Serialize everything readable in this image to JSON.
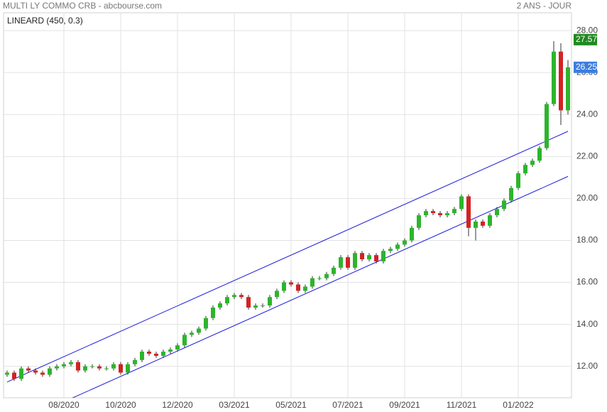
{
  "chart_data": {
    "type": "candlestick",
    "title": "MULTI LY COMMO CRB - abcbourse.com",
    "period": "2 ANS - JOUR",
    "indicator": "LINEARD (450, 0.3)",
    "open": [
      11.6,
      11.7,
      11.4,
      11.9,
      11.8,
      11.7,
      11.6,
      11.9,
      12.0,
      12.1,
      12.2,
      11.8,
      12.0,
      12.0,
      11.9,
      11.9,
      12.1,
      11.7,
      12.1,
      12.3,
      12.7,
      12.6,
      12.5,
      12.7,
      12.8,
      13.0,
      13.5,
      13.6,
      13.8,
      14.3,
      14.8,
      15.0,
      15.3,
      15.4,
      15.3,
      14.8,
      14.9,
      14.9,
      15.3,
      15.6,
      16.0,
      15.9,
      15.6,
      15.8,
      16.2,
      16.2,
      16.4,
      16.7,
      17.2,
      16.7,
      17.4,
      17.1,
      17.3,
      17.0,
      17.5,
      17.6,
      17.8,
      18.0,
      18.6,
      19.2,
      19.4,
      19.3,
      19.2,
      19.3,
      19.5,
      20.1,
      18.6,
      18.9,
      18.7,
      19.2,
      19.5,
      19.9,
      20.5,
      21.2,
      21.6,
      21.8,
      22.4,
      24.5,
      27.0,
      24.2
    ],
    "high": [
      11.8,
      11.8,
      12.0,
      12.0,
      11.9,
      11.8,
      12.0,
      12.1,
      12.2,
      12.3,
      12.3,
      12.1,
      12.1,
      12.1,
      12.0,
      12.2,
      12.2,
      12.2,
      12.4,
      12.8,
      12.8,
      12.7,
      12.8,
      12.9,
      13.1,
      13.6,
      13.7,
      13.9,
      14.4,
      14.9,
      15.1,
      15.4,
      15.5,
      15.5,
      15.4,
      15.0,
      15.0,
      15.4,
      15.7,
      16.1,
      16.1,
      16.0,
      15.9,
      16.3,
      16.3,
      16.5,
      16.8,
      17.3,
      17.3,
      17.5,
      17.5,
      17.4,
      17.4,
      17.6,
      17.7,
      17.9,
      18.1,
      18.7,
      19.3,
      19.5,
      19.5,
      19.4,
      19.4,
      19.6,
      20.2,
      20.2,
      19.0,
      19.0,
      19.3,
      19.6,
      20.0,
      20.6,
      21.3,
      21.7,
      21.9,
      22.5,
      24.6,
      27.5,
      27.4,
      26.6
    ],
    "low": [
      11.5,
      11.3,
      11.3,
      11.7,
      11.6,
      11.5,
      11.5,
      11.8,
      11.9,
      12.0,
      11.7,
      11.7,
      11.9,
      11.8,
      11.8,
      11.8,
      11.6,
      11.6,
      12.0,
      12.2,
      12.5,
      12.4,
      12.4,
      12.6,
      12.7,
      12.9,
      13.4,
      13.5,
      13.7,
      14.2,
      14.7,
      14.9,
      15.2,
      15.2,
      14.7,
      14.7,
      14.8,
      14.8,
      15.2,
      15.5,
      15.8,
      15.5,
      15.5,
      15.7,
      16.1,
      16.1,
      16.3,
      16.6,
      16.6,
      16.6,
      17.0,
      17.0,
      16.9,
      16.9,
      17.4,
      17.5,
      17.7,
      17.9,
      18.5,
      19.1,
      19.2,
      19.1,
      19.1,
      19.2,
      19.4,
      18.2,
      18.0,
      18.6,
      18.6,
      19.1,
      19.4,
      19.8,
      20.4,
      21.1,
      21.5,
      21.7,
      22.3,
      24.4,
      23.5,
      24.0
    ],
    "close": [
      11.7,
      11.4,
      11.9,
      11.8,
      11.7,
      11.6,
      11.9,
      12.0,
      12.1,
      12.2,
      11.8,
      12.0,
      12.0,
      11.9,
      11.9,
      12.1,
      11.7,
      12.1,
      12.3,
      12.7,
      12.6,
      12.5,
      12.7,
      12.8,
      13.0,
      13.5,
      13.6,
      13.8,
      14.3,
      14.8,
      15.0,
      15.3,
      15.4,
      15.3,
      14.8,
      14.9,
      14.9,
      15.3,
      15.6,
      16.0,
      15.9,
      15.6,
      15.8,
      16.2,
      16.2,
      16.4,
      16.7,
      17.2,
      16.7,
      17.4,
      17.1,
      17.3,
      17.0,
      17.5,
      17.6,
      17.8,
      18.0,
      18.6,
      19.2,
      19.4,
      19.3,
      19.2,
      19.3,
      19.5,
      20.1,
      18.6,
      18.9,
      18.7,
      19.2,
      19.5,
      19.9,
      20.5,
      21.2,
      21.6,
      21.8,
      22.4,
      24.5,
      27.0,
      24.2,
      26.25
    ],
    "up_color": "#2cb52c",
    "down_color": "#d42222",
    "channel": {
      "color": "#1a1adb",
      "upper": [
        11.25,
        23.2
      ],
      "lower": [
        9.1,
        21.05
      ]
    },
    "markers": [
      {
        "value": 27.57,
        "label": "27.57",
        "color": "#1f8a1f"
      },
      {
        "value": 26.25,
        "label": "26.25",
        "color": "#3b7de0"
      }
    ],
    "xticks": [
      {
        "value": 8,
        "label": "08/2020"
      },
      {
        "value": 16,
        "label": "10/2020"
      },
      {
        "value": 24,
        "label": "12/2020"
      },
      {
        "value": 32,
        "label": "03/2021"
      },
      {
        "value": 40,
        "label": "05/2021"
      },
      {
        "value": 48,
        "label": "07/2021"
      },
      {
        "value": 56,
        "label": "09/2021"
      },
      {
        "value": 64,
        "label": "11/2021"
      },
      {
        "value": 72,
        "label": "01/2022"
      }
    ],
    "ylim": [
      10.5,
      28.85
    ],
    "yticks": [
      {
        "value": 12,
        "label": "12.00"
      },
      {
        "value": 14,
        "label": "14.00"
      },
      {
        "value": 16,
        "label": "16.00"
      },
      {
        "value": 18,
        "label": "18.00"
      },
      {
        "value": 20,
        "label": "20.00"
      },
      {
        "value": 22,
        "label": "22.00"
      },
      {
        "value": 24,
        "label": "24.00"
      },
      {
        "value": 26,
        "label": "26.00"
      },
      {
        "value": 28,
        "label": "28.00"
      }
    ],
    "grid": true
  }
}
